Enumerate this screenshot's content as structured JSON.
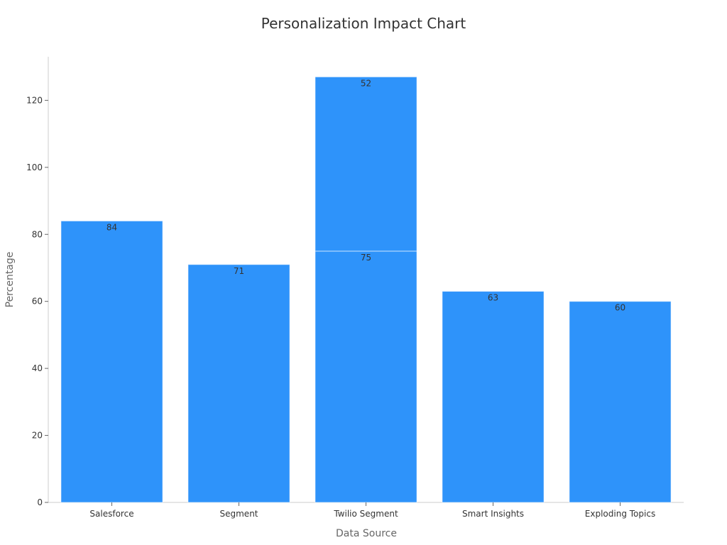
{
  "chart_data": {
    "type": "bar",
    "stacked": true,
    "title": "Personalization Impact Chart",
    "xlabel": "Data Source",
    "ylabel": "Percentage",
    "categories": [
      "Salesforce",
      "Segment",
      "Twilio Segment",
      "Smart Insights",
      "Exploding Topics"
    ],
    "series": [
      {
        "values": [
          84,
          71,
          75,
          63,
          60
        ]
      },
      {
        "values": [
          null,
          null,
          52,
          null,
          null
        ]
      }
    ],
    "ylim": [
      0,
      133
    ],
    "yticks": [
      0,
      20,
      40,
      60,
      80,
      100,
      120
    ],
    "grid": false,
    "legend": "none",
    "bar_color": "#2e93fa"
  }
}
